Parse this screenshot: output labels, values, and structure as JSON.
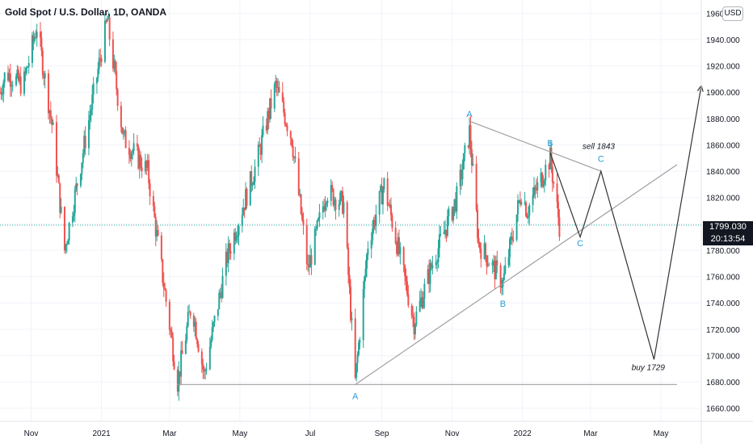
{
  "header": {
    "symbol_title": "Gold Spot / U.S. Dollar, 1D, OANDA",
    "currency_badge": "USD"
  },
  "price_tag": {
    "price": "1799.030",
    "countdown": "20:13:54"
  },
  "colors": {
    "up": "#26a69a",
    "down": "#ef5350",
    "wave_label": "#2a9bd8",
    "trendline": "#a0a0a0",
    "projection": "#333333",
    "price_line": "#26a69a"
  },
  "chart_data": {
    "type": "candlestick",
    "title": "Gold Spot / U.S. Dollar, 1D, OANDA",
    "ylim": [
      1650,
      1970
    ],
    "yticks": [
      1660,
      1680,
      1700,
      1720,
      1740,
      1760,
      1780,
      1800,
      1820,
      1840,
      1860,
      1880,
      1900,
      1920,
      1940,
      1960
    ],
    "ytick_labels": [
      "1660.000",
      "1680.000",
      "1700.000",
      "1720.000",
      "1740.000",
      "1760.000",
      "1780.000",
      "1800.000",
      "1820.000",
      "1840.000",
      "1860.000",
      "1880.000",
      "1900.000",
      "1920.000",
      "1940.000",
      "1960.000"
    ],
    "xlim": [
      "2020-10-05",
      "2022-06-05"
    ],
    "xticks": [
      "2020-11-01",
      "2021-01-01",
      "2021-03-01",
      "2021-05-01",
      "2021-07-01",
      "2021-09-01",
      "2021-11-01",
      "2022-01-01",
      "2022-03-01",
      "2022-05-01"
    ],
    "xtick_labels": [
      "Nov",
      "2021",
      "Mar",
      "May",
      "Jul",
      "Sep",
      "Nov",
      "2022",
      "Mar",
      "May"
    ],
    "last_price": 1799.03,
    "price_keypoints": [
      [
        "2020-10-05",
        1900
      ],
      [
        "2020-10-10",
        1915
      ],
      [
        "2020-10-25",
        1905
      ],
      [
        "2020-11-06",
        1950
      ],
      [
        "2020-11-20",
        1870
      ],
      [
        "2020-11-30",
        1780
      ],
      [
        "2020-12-15",
        1850
      ],
      [
        "2021-01-06",
        1955
      ],
      [
        "2021-01-20",
        1865
      ],
      [
        "2021-02-10",
        1840
      ],
      [
        "2021-03-08",
        1680
      ],
      [
        "2021-03-20",
        1740
      ],
      [
        "2021-03-31",
        1685
      ],
      [
        "2021-04-20",
        1775
      ],
      [
        "2021-05-15",
        1845
      ],
      [
        "2021-06-01",
        1905
      ],
      [
        "2021-06-15",
        1865
      ],
      [
        "2021-06-29",
        1765
      ],
      [
        "2021-07-15",
        1825
      ],
      [
        "2021-07-30",
        1815
      ],
      [
        "2021-08-09",
        1680
      ],
      [
        "2021-08-20",
        1785
      ],
      [
        "2021-09-03",
        1830
      ],
      [
        "2021-09-29",
        1725
      ],
      [
        "2021-10-15",
        1770
      ],
      [
        "2021-11-05",
        1820
      ],
      [
        "2021-11-16",
        1870
      ],
      [
        "2021-11-24",
        1785
      ],
      [
        "2021-12-15",
        1755
      ],
      [
        "2021-12-31",
        1825
      ],
      [
        "2022-01-05",
        1810
      ],
      [
        "2022-01-25",
        1850
      ],
      [
        "2022-02-02",
        1799
      ]
    ],
    "annotations": {
      "wave_labels": [
        {
          "text": "A",
          "x": "2021-11-16",
          "y": 1881
        },
        {
          "text": "B",
          "x": "2022-01-25",
          "y": 1859
        },
        {
          "text": "C",
          "x": "2022-03-10",
          "y": 1847
        },
        {
          "text": "C",
          "x": "2022-02-20",
          "y": 1783
        },
        {
          "text": "B",
          "x": "2021-12-15",
          "y": 1737
        },
        {
          "text": "A",
          "x": "2021-08-09",
          "y": 1667
        }
      ],
      "text_labels": [
        {
          "text": "sell 1843",
          "x": "2022-03-08",
          "y": 1857
        },
        {
          "text": "buy 1729",
          "x": "2022-04-20",
          "y": 1689
        }
      ],
      "trendlines": [
        {
          "from": [
            "2021-11-16",
            1878
          ],
          "to": [
            "2022-03-10",
            1840
          ]
        },
        {
          "from": [
            "2021-08-09",
            1678
          ],
          "to": [
            "2022-05-15",
            1845
          ]
        },
        {
          "from": [
            "2021-03-08",
            1678
          ],
          "to": [
            "2022-05-15",
            1678
          ]
        }
      ],
      "projection_path": [
        [
          "2022-01-25",
          1854
        ],
        [
          "2022-02-20",
          1790
        ],
        [
          "2022-03-10",
          1840
        ],
        [
          "2022-04-25",
          1697
        ],
        [
          "2022-06-05",
          1905
        ]
      ]
    }
  }
}
